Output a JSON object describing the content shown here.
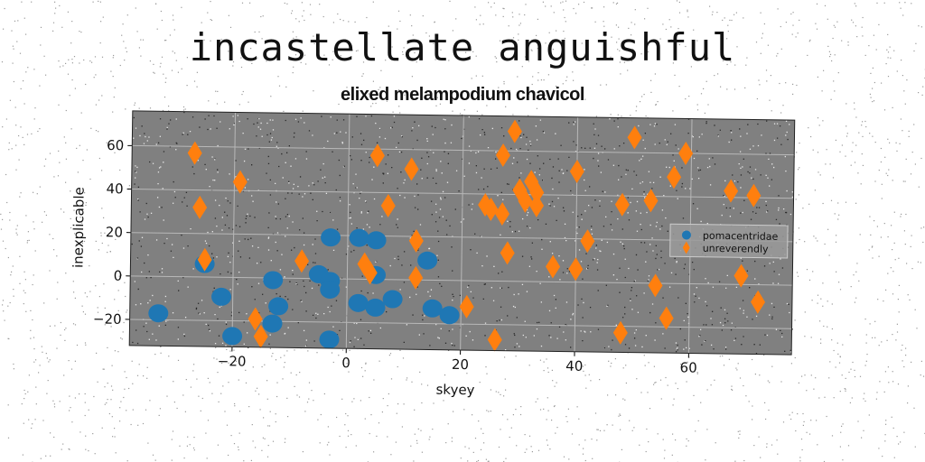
{
  "title": "incastellate anguishful",
  "chart_data": {
    "type": "scatter",
    "title": "elixed melampodium chavicol",
    "xlabel": "skyey",
    "ylabel": "inexplicable",
    "xlim": [
      -38,
      78
    ],
    "ylim": [
      -32,
      76
    ],
    "xticks": [
      -20,
      0,
      20,
      40,
      60
    ],
    "yticks": [
      -20,
      0,
      20,
      40,
      60
    ],
    "xtick_labels": [
      "−20",
      "0",
      "20",
      "40",
      "60"
    ],
    "ytick_labels": [
      "−20",
      "0",
      "20",
      "40",
      "60"
    ],
    "grid": true,
    "legend_position": "right",
    "background": "#808080",
    "series": [
      {
        "name": "pomacentridae",
        "marker": "circle",
        "color": "#1f77b4",
        "points": [
          [
            -33,
            -17
          ],
          [
            -25,
            6
          ],
          [
            -22,
            -9
          ],
          [
            -20,
            -27
          ],
          [
            -13,
            -1
          ],
          [
            -12,
            -13
          ],
          [
            -13,
            -21
          ],
          [
            -5,
            2
          ],
          [
            -3,
            -1
          ],
          [
            -3,
            -5
          ],
          [
            -3,
            -28
          ],
          [
            -3,
            19
          ],
          [
            2,
            19
          ],
          [
            5,
            18
          ],
          [
            2,
            -11
          ],
          [
            5,
            -13
          ],
          [
            8,
            -9
          ],
          [
            5,
            2
          ],
          [
            14,
            9
          ],
          [
            15,
            -13
          ],
          [
            18,
            -16
          ]
        ]
      },
      {
        "name": "unreverendly",
        "marker": "thin_diamond",
        "color": "#ff7f0e",
        "points": [
          [
            -27,
            57
          ],
          [
            -26,
            32
          ],
          [
            -25,
            8
          ],
          [
            -19,
            44
          ],
          [
            -16,
            -19
          ],
          [
            -15,
            -27
          ],
          [
            -8,
            8
          ],
          [
            3,
            7
          ],
          [
            4,
            3
          ],
          [
            5,
            57
          ],
          [
            7,
            34
          ],
          [
            11,
            51
          ],
          [
            12,
            18
          ],
          [
            12,
            1
          ],
          [
            21,
            -12
          ],
          [
            24,
            35
          ],
          [
            25,
            33
          ],
          [
            27,
            58
          ],
          [
            27,
            31
          ],
          [
            28,
            13
          ],
          [
            29,
            69
          ],
          [
            30,
            42
          ],
          [
            31,
            37
          ],
          [
            32,
            46
          ],
          [
            33,
            41
          ],
          [
            33,
            35
          ],
          [
            26,
            -27
          ],
          [
            36,
            7
          ],
          [
            40,
            51
          ],
          [
            40,
            6
          ],
          [
            42,
            19
          ],
          [
            48,
            36
          ],
          [
            48,
            -23
          ],
          [
            50,
            67
          ],
          [
            53,
            38
          ],
          [
            54,
            -1
          ],
          [
            56,
            -16
          ],
          [
            57,
            49
          ],
          [
            59,
            60
          ],
          [
            67,
            43
          ],
          [
            69,
            4
          ],
          [
            71,
            41
          ],
          [
            72,
            -8
          ]
        ]
      }
    ]
  }
}
